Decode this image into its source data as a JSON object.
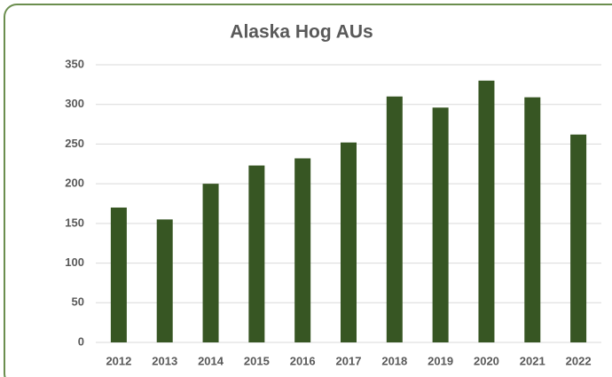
{
  "chart_data": {
    "type": "bar",
    "title": "Alaska Hog AUs",
    "categories": [
      "2012",
      "2013",
      "2014",
      "2015",
      "2016",
      "2017",
      "2018",
      "2019",
      "2020",
      "2021",
      "2022"
    ],
    "values": [
      170,
      155,
      200,
      223,
      232,
      252,
      310,
      296,
      330,
      309,
      262
    ],
    "color": "#375623",
    "ylim": [
      0,
      350
    ],
    "yticks": [
      0,
      50,
      100,
      150,
      200,
      250,
      300,
      350
    ],
    "grid": true
  }
}
